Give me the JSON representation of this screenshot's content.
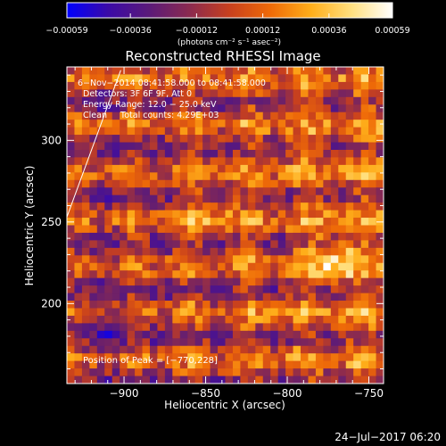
{
  "colors": {
    "background": "#000000",
    "foreground": "#ffffff",
    "colormap": [
      "#0000ff",
      "#3a0aa8",
      "#5a1a7a",
      "#8a2a50",
      "#c8401e",
      "#ee6a08",
      "#ffae1a",
      "#ffe080",
      "#ffffff"
    ]
  },
  "colorbar": {
    "ticks": [
      -0.00059,
      -0.00036,
      -0.00012,
      0.00012,
      0.00036,
      0.00059
    ],
    "tick_labels": [
      "−0.00059",
      "−0.00036",
      "−0.00012",
      "0.00012",
      "0.00036",
      "0.00059"
    ],
    "unit_label": "(photons cm⁻² s⁻¹ asec⁻²)"
  },
  "chart_data": {
    "type": "heatmap",
    "title": "Reconstructed RHESSI Image",
    "xlabel": "Heliocentric X (arcsec)",
    "ylabel": "Heliocentric Y (arcsec)",
    "xlim": [
      -935,
      -741
    ],
    "ylim": [
      151,
      345
    ],
    "x_ticks": [
      -900,
      -850,
      -800,
      -750
    ],
    "x_tick_labels": [
      "−900",
      "−850",
      "−800",
      "−750"
    ],
    "y_ticks": [
      200,
      250,
      300
    ],
    "y_tick_labels": [
      "200",
      "250",
      "300"
    ],
    "value_range": [
      -0.00059,
      0.00059
    ],
    "grid": false,
    "annotations": [
      "6−Nov−2014 08:41:58.000 to 08:41:58.000",
      "Detectors: 3F 6F 9F, Att 0",
      "Energy Range: 12.0 − 25.0 keV",
      "Clean     Total counts: 4.29E+03"
    ],
    "peak_label": "Position of Peak = [−770,228]",
    "peak": [
      -770,
      228
    ],
    "limb_line": [
      [
        -935,
        253
      ],
      [
        -902,
        343
      ]
    ]
  },
  "footer": {
    "date": "24−Jul−2017 06:20"
  }
}
